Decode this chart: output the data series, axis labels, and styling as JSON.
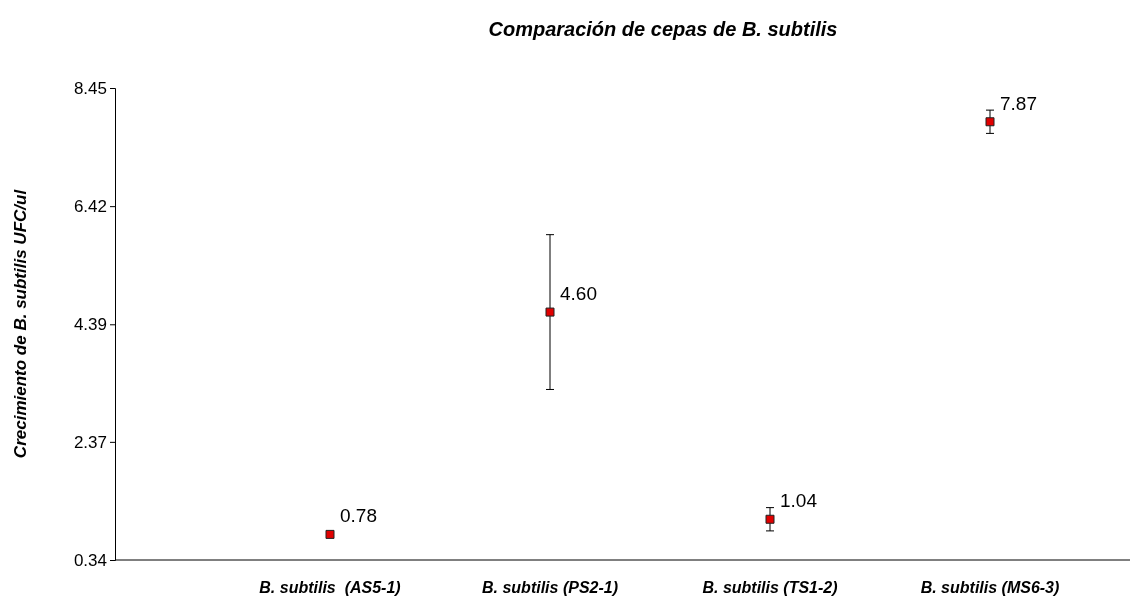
{
  "chart_data": {
    "type": "scatter",
    "title": "Comparación de cepas de B. subtilis",
    "ylabel": "Crecimiento de B. subtilis UFC/ul",
    "categories": [
      null,
      "B. subtilis  (AS5-1)",
      "B. subtilis (PS2-1)",
      "B. subtilis (TS1-2)",
      "B. subtilis (MS6-3)"
    ],
    "series": [
      {
        "color": "#e00000",
        "values": [
          null,
          0.78,
          4.6,
          1.04,
          7.87
        ],
        "errors": [
          null,
          null,
          1.33,
          0.2,
          0.2
        ],
        "value_labels": [
          null,
          "0.78",
          "4.60",
          "1.04",
          "7.87"
        ]
      }
    ],
    "ylim": [
      0.34,
      8.45
    ],
    "yticks": [
      0.34,
      2.37,
      4.39,
      6.42,
      8.45
    ],
    "marker": "square"
  }
}
